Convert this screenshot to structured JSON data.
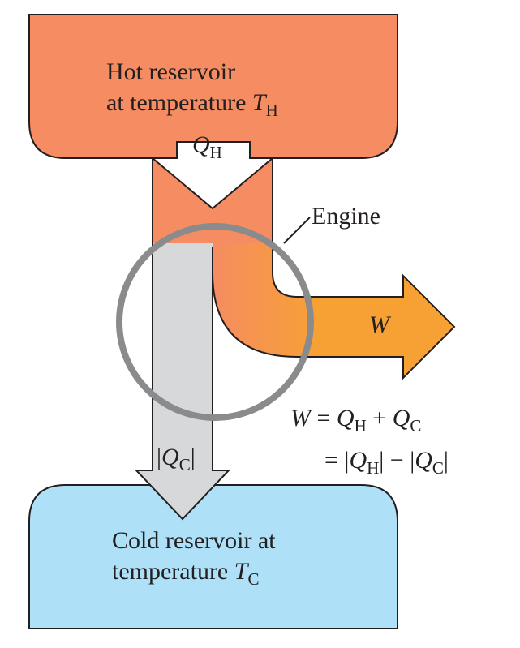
{
  "hot_reservoir": {
    "line1": "Hot reservoir",
    "line2_prefix": "at temperature ",
    "symbol": "T",
    "subscript": "H"
  },
  "cold_reservoir": {
    "line1": "Cold reservoir at",
    "line2_prefix": "temperature ",
    "symbol": "T",
    "subscript": "C"
  },
  "heat_in": {
    "symbol": "Q",
    "subscript": "H"
  },
  "heat_out": {
    "open": "|",
    "symbol": "Q",
    "subscript": "C",
    "close": "|"
  },
  "engine_label": "Engine",
  "work_label": "W",
  "equation": {
    "line1": {
      "lhs": "W",
      "eq": " = ",
      "q1": "Q",
      "s1": "H",
      "op": " + ",
      "q2": "Q",
      "s2": "C"
    },
    "line2": {
      "eq": "= ",
      "b1": "|",
      "q1": "Q",
      "s1": "H",
      "b2": "|",
      "op": " − ",
      "b3": "|",
      "q2": "Q",
      "s2": "C",
      "b4": "|"
    }
  },
  "colors": {
    "hot": "#f58c62",
    "cold": "#aee1f7",
    "work": "#f7a134",
    "engine_ring": "#8a8b8d",
    "outline": "#231f20"
  }
}
